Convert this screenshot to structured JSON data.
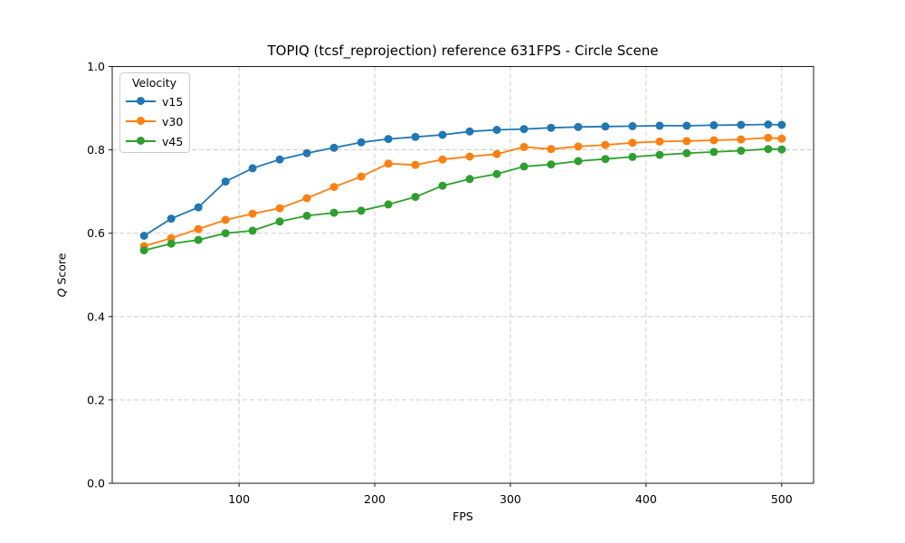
{
  "chart_data": {
    "type": "line",
    "title": "TOPIQ (tcsf_reprojection) reference 631FPS - Circle Scene",
    "xlabel": "FPS",
    "ylabel": "Q Score",
    "ylabel_italic_part": "Q",
    "ylabel_regular_part": "Score",
    "legend_title": "Velocity",
    "legend_position": "upper left",
    "grid": "dashed",
    "grid_color": "#c6c6c6",
    "xlim": [
      6.5,
      523.5
    ],
    "ylim": [
      0.0,
      1.0
    ],
    "xticks": [
      100,
      200,
      300,
      400,
      500
    ],
    "xtick_labels": [
      "100",
      "200",
      "300",
      "400",
      "500"
    ],
    "yticks": [
      0.0,
      0.2,
      0.4,
      0.6,
      0.8,
      1.0
    ],
    "ytick_labels": [
      "0.0",
      "0.2",
      "0.4",
      "0.6",
      "0.8",
      "1.0"
    ],
    "x": [
      30,
      50,
      70,
      90,
      110,
      130,
      150,
      170,
      190,
      210,
      230,
      250,
      270,
      290,
      310,
      330,
      350,
      370,
      390,
      410,
      430,
      450,
      470,
      490,
      500
    ],
    "series": [
      {
        "name": "v15",
        "color": "#1f77b4",
        "values": [
          0.594,
          0.635,
          0.662,
          0.724,
          0.756,
          0.777,
          0.792,
          0.805,
          0.818,
          0.826,
          0.831,
          0.836,
          0.844,
          0.848,
          0.85,
          0.853,
          0.855,
          0.856,
          0.857,
          0.858,
          0.858,
          0.859,
          0.86,
          0.861,
          0.86
        ]
      },
      {
        "name": "v30",
        "color": "#ff7f0e",
        "values": [
          0.569,
          0.588,
          0.61,
          0.632,
          0.647,
          0.66,
          0.684,
          0.711,
          0.736,
          0.767,
          0.764,
          0.777,
          0.784,
          0.79,
          0.807,
          0.802,
          0.808,
          0.812,
          0.817,
          0.82,
          0.821,
          0.823,
          0.825,
          0.829,
          0.827
        ]
      },
      {
        "name": "v45",
        "color": "#2ca02c",
        "values": [
          0.559,
          0.575,
          0.584,
          0.6,
          0.606,
          0.628,
          0.642,
          0.649,
          0.654,
          0.669,
          0.687,
          0.714,
          0.73,
          0.742,
          0.76,
          0.765,
          0.773,
          0.778,
          0.783,
          0.788,
          0.792,
          0.795,
          0.798,
          0.802,
          0.801
        ]
      }
    ]
  }
}
